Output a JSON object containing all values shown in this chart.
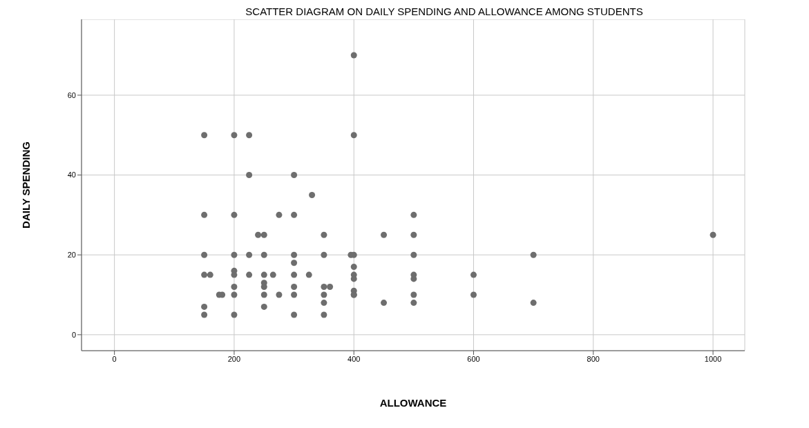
{
  "chart_data": {
    "type": "scatter",
    "title": "SCATTER DIAGRAM ON DAILY SPENDING AND ALLOWANCE AMONG STUDENTS",
    "xlabel": "ALLOWANCE",
    "ylabel": "DAILY SPENDING",
    "x": [
      150,
      200,
      275,
      300,
      240,
      250,
      350,
      150,
      200,
      225,
      250,
      300,
      350,
      395,
      400,
      300,
      400,
      200,
      150,
      160,
      200,
      225,
      250,
      265,
      300,
      325,
      400,
      400,
      250,
      200,
      250,
      300,
      350,
      360,
      400,
      175,
      180,
      200,
      250,
      275,
      300,
      350,
      400,
      350,
      150,
      250,
      150,
      200,
      300,
      350,
      400,
      150,
      200,
      225,
      400,
      225,
      300,
      330,
      500,
      450,
      500,
      500,
      500,
      600,
      500,
      400,
      500,
      600,
      450,
      500,
      700,
      700,
      1000
    ],
    "values": [
      30,
      30,
      30,
      30,
      25,
      25,
      25,
      20,
      20,
      20,
      20,
      20,
      20,
      20,
      20,
      18,
      17,
      16,
      15,
      15,
      15,
      15,
      15,
      15,
      15,
      15,
      15,
      14,
      13,
      12,
      12,
      12,
      12,
      12,
      11,
      10,
      10,
      10,
      10,
      10,
      10,
      10,
      10,
      8,
      7,
      7,
      5,
      5,
      5,
      5,
      70,
      50,
      50,
      50,
      50,
      40,
      40,
      35,
      30,
      25,
      25,
      20,
      15,
      15,
      14,
      10,
      10,
      10,
      8,
      8,
      20,
      8,
      25
    ],
    "color": "#6e6e6e",
    "marker": "circle",
    "xlim": [
      -55,
      1053
    ],
    "ylim": [
      -4,
      79
    ],
    "xticks": [
      0,
      200,
      400,
      600,
      800,
      1000
    ],
    "yticks": [
      0,
      20,
      40,
      60
    ],
    "grid": true
  }
}
